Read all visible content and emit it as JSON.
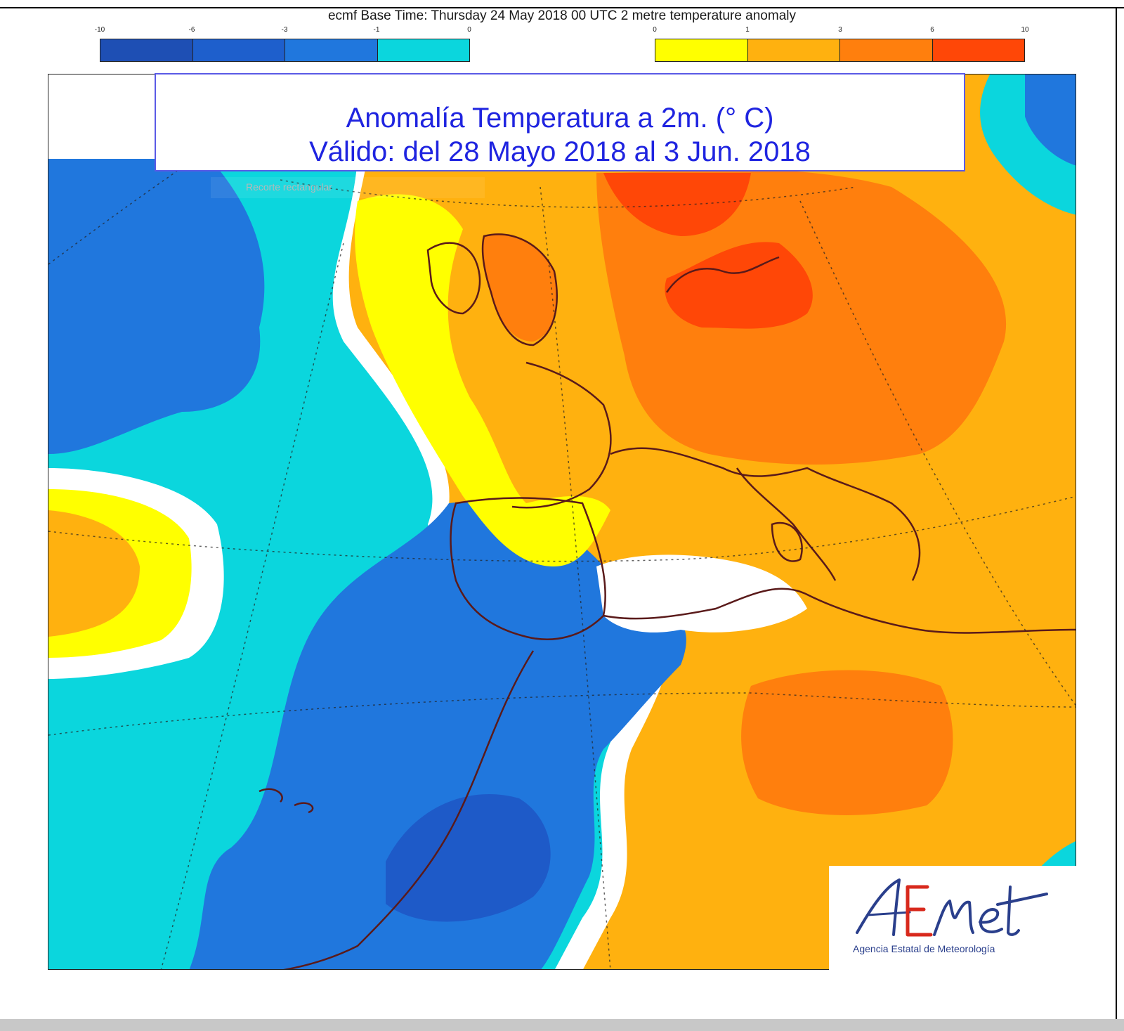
{
  "header": {
    "base_time_line": "ecmf  Base Time: Thursday 24 May 2018 00 UTC 2 metre temperature anomaly"
  },
  "legend": {
    "cold": {
      "ticks": [
        "-10",
        "-6",
        "-3",
        "-1",
        "0"
      ],
      "colors": [
        "#1e4fb4",
        "#1e5fcc",
        "#2077dd",
        "#0bd6dd"
      ]
    },
    "warm": {
      "ticks": [
        "0",
        "1",
        "3",
        "6",
        "10"
      ],
      "colors": [
        "#ffff00",
        "#ffb10f",
        "#ff7f0d",
        "#ff4707"
      ]
    }
  },
  "title_box": {
    "line1": "Anomalía Temperatura a 2m. (° C)",
    "line2": "Válido: del 28 Mayo 2018 al 3 Jun. 2018"
  },
  "overlay": {
    "clip_label": "Recorte rectangular"
  },
  "logo": {
    "subtitle": "Agencia Estatal de Meteorología"
  },
  "map_colors": {
    "deep_blue": "#1e5ac8",
    "mid_blue": "#2077dd",
    "cyan": "#0bd6dd",
    "yellow": "#ffff00",
    "light_orange": "#ffb10f",
    "orange": "#ff7f0d",
    "red_orange": "#ff4707",
    "coast": "#5a1a1a"
  }
}
